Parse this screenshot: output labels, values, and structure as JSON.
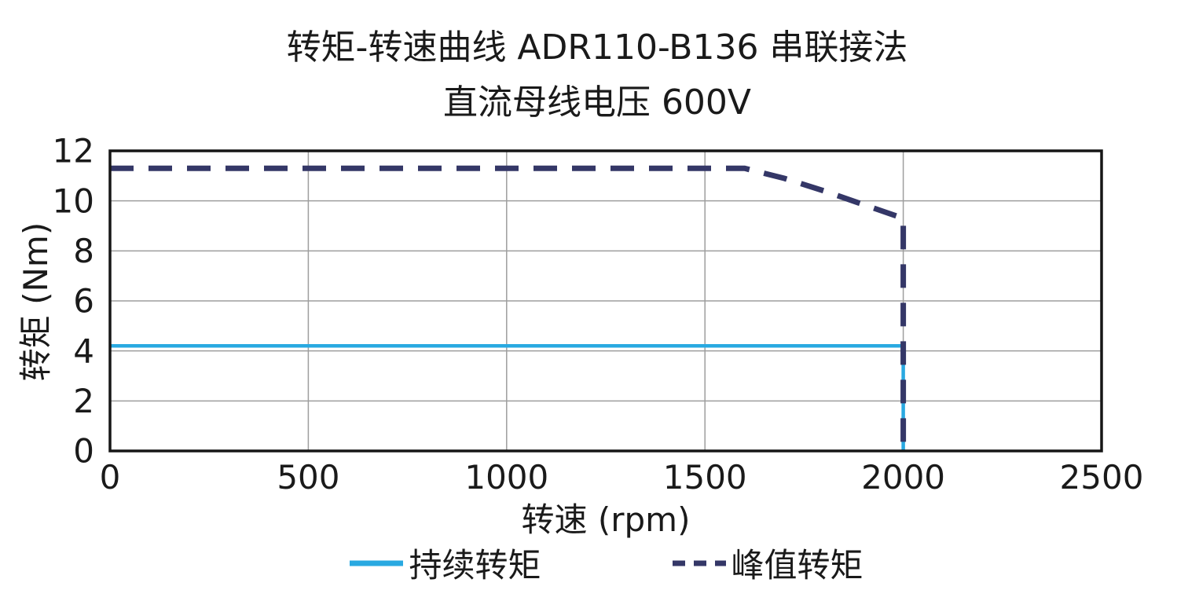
{
  "chart_data": {
    "type": "line",
    "title": "转矩-转速曲线 ADR110-B136 串联接法",
    "subtitle": "直流母线电压 600V",
    "xlabel": "转速 (rpm)",
    "ylabel": "转矩 (Nm)",
    "xlim": [
      0,
      2500
    ],
    "ylim": [
      0,
      12
    ],
    "xticks": [
      0,
      500,
      1000,
      1500,
      2000,
      2500
    ],
    "yticks": [
      0,
      2,
      4,
      6,
      8,
      10,
      12
    ],
    "grid": true,
    "grid_color": "#9e9e9e",
    "axis_color": "#161616",
    "text_color": "#1a1a1a",
    "background_color": "#ffffff",
    "legend_position": "bottom",
    "series": [
      {
        "name": "持续转矩",
        "color": "#29A9E1",
        "style": "solid",
        "width": 4.5,
        "dash": "",
        "legend_dash": "",
        "points": [
          [
            0,
            4.2
          ],
          [
            2000,
            4.2
          ],
          [
            2000,
            0
          ]
        ]
      },
      {
        "name": "峰值转矩",
        "color": "#343767",
        "style": "dashed",
        "width": 7,
        "dash": "30 19",
        "legend_dash": "16 11",
        "points": [
          [
            0,
            11.3
          ],
          [
            1600,
            11.3
          ],
          [
            1700,
            10.9
          ],
          [
            1800,
            10.4
          ],
          [
            1900,
            9.85
          ],
          [
            2000,
            9.3
          ],
          [
            2000,
            0
          ]
        ]
      }
    ]
  }
}
